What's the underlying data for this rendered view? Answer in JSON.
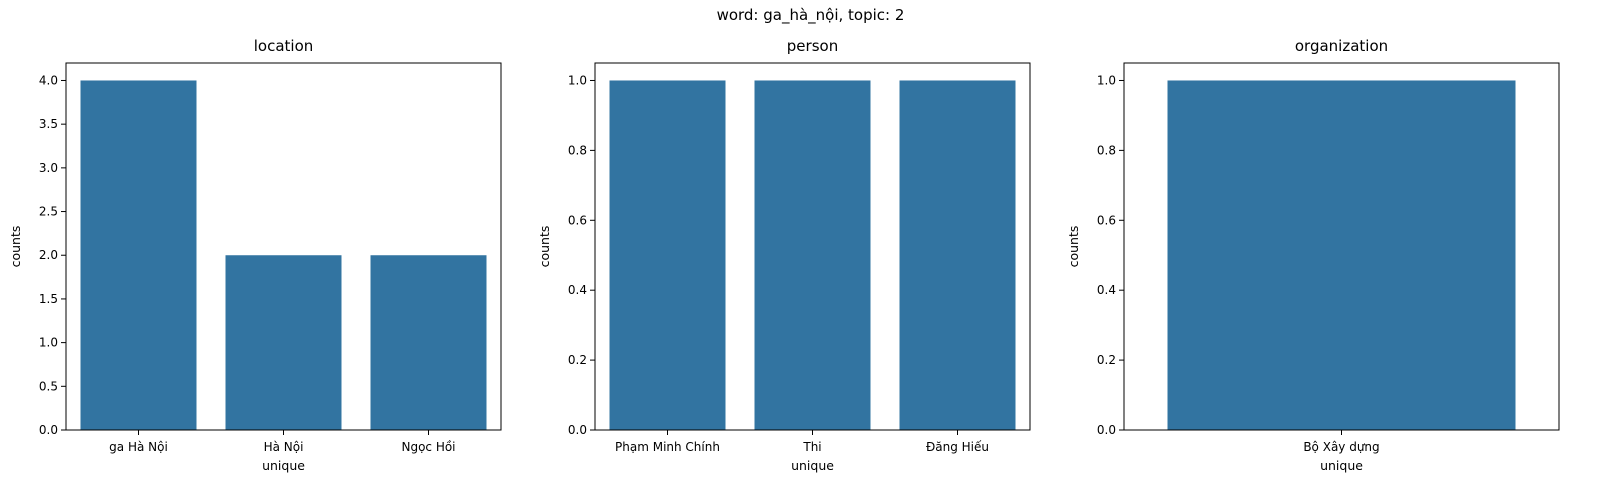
{
  "suptitle": "word: ga_hà_nội, topic: 2",
  "colors": {
    "bar": "#3274a1",
    "axis": "#000000",
    "background": "#ffffff"
  },
  "chart_data": [
    {
      "type": "bar",
      "title": "location",
      "xlabel": "unique",
      "ylabel": "counts",
      "categories": [
        "ga Hà Nội",
        "Hà Nội",
        "Ngọc Hồi"
      ],
      "values": [
        4,
        2,
        2
      ],
      "ylim": [
        0,
        4.2
      ],
      "yticks": [
        0,
        0.5,
        1.0,
        1.5,
        2.0,
        2.5,
        3.0,
        3.5,
        4.0
      ],
      "ytick_labels": [
        "0.0",
        "0.5",
        "1.0",
        "1.5",
        "2.0",
        "2.5",
        "3.0",
        "3.5",
        "4.0"
      ],
      "grid": false,
      "legend": "none"
    },
    {
      "type": "bar",
      "title": "person",
      "xlabel": "unique",
      "ylabel": "counts",
      "categories": [
        "Phạm Minh Chính",
        "Thi",
        "Đăng Hiếu"
      ],
      "values": [
        1,
        1,
        1
      ],
      "ylim": [
        0,
        1.05
      ],
      "yticks": [
        0,
        0.2,
        0.4,
        0.6,
        0.8,
        1.0
      ],
      "ytick_labels": [
        "0.0",
        "0.2",
        "0.4",
        "0.6",
        "0.8",
        "1.0"
      ],
      "grid": false,
      "legend": "none"
    },
    {
      "type": "bar",
      "title": "organization",
      "xlabel": "unique",
      "ylabel": "counts",
      "categories": [
        "Bộ Xây dựng"
      ],
      "values": [
        1
      ],
      "ylim": [
        0,
        1.05
      ],
      "yticks": [
        0,
        0.2,
        0.4,
        0.6,
        0.8,
        1.0
      ],
      "ytick_labels": [
        "0.0",
        "0.2",
        "0.4",
        "0.6",
        "0.8",
        "1.0"
      ],
      "grid": false,
      "legend": "none"
    }
  ]
}
